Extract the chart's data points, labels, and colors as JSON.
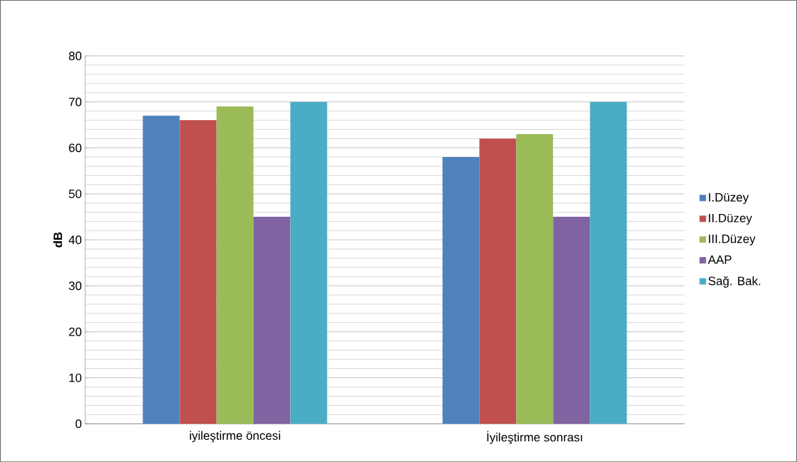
{
  "chart_data": {
    "type": "bar",
    "ylabel": "dB",
    "categories": [
      "iyileştirme öncesi",
      "İyileştirme sonrası"
    ],
    "series": [
      {
        "name": "I.Düzey",
        "color": "#4f81bd",
        "values": [
          67,
          58
        ]
      },
      {
        "name": "II.Düzey",
        "color": "#c0504d",
        "values": [
          66,
          62
        ]
      },
      {
        "name": "III.Düzey",
        "color": "#9bbb59",
        "values": [
          69,
          63
        ]
      },
      {
        "name": "AAP",
        "color": "#8064a2",
        "values": [
          45,
          45
        ]
      },
      {
        "name": "Sağ. Bak.",
        "color": "#4bacc6",
        "values": [
          70,
          70
        ]
      }
    ],
    "ylim": [
      0,
      80
    ],
    "yticks": [
      0,
      10,
      20,
      30,
      40,
      50,
      60,
      70,
      80
    ],
    "grid": "y",
    "legend": "right"
  }
}
